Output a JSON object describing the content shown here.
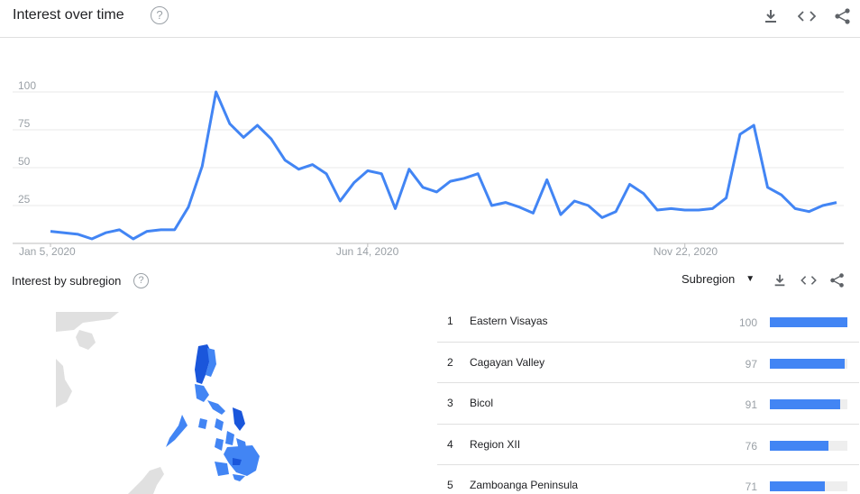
{
  "header": {
    "title": "Interest over time",
    "help_glyph": "?",
    "icons": [
      "download-icon",
      "embed-code-icon",
      "share-icon"
    ]
  },
  "chart_data": {
    "type": "line",
    "title": "",
    "xlabel": "",
    "ylabel": "",
    "ylim": [
      0,
      100
    ],
    "yticks": [
      25,
      50,
      75,
      100
    ],
    "grid": true,
    "x_tick_labels": [
      "Jan 5, 2020",
      "Jun 14, 2020",
      "Nov 22, 2020"
    ],
    "x_tick_indices": [
      0,
      23,
      46
    ],
    "series": [
      {
        "name": "",
        "color": "#4285f4",
        "values": [
          8,
          7,
          6,
          3,
          7,
          9,
          3,
          8,
          9,
          9,
          24,
          51,
          100,
          79,
          70,
          78,
          69,
          55,
          49,
          52,
          46,
          28,
          40,
          48,
          46,
          23,
          49,
          37,
          34,
          41,
          43,
          46,
          25,
          27,
          24,
          20,
          42,
          19,
          28,
          25,
          17,
          21,
          39,
          33,
          22,
          23,
          22,
          22,
          23,
          30,
          72,
          78,
          37,
          32,
          23,
          21,
          25,
          27
        ]
      }
    ]
  },
  "subregion": {
    "title": "Interest by subregion",
    "help_glyph": "?",
    "dropdown_label": "Subregion",
    "dropdown_caret": "▼",
    "icons": [
      "download-icon",
      "embed-code-icon",
      "share-icon"
    ],
    "items": [
      {
        "rank": "1",
        "name": "Eastern Visayas",
        "value": 100
      },
      {
        "rank": "2",
        "name": "Cagayan Valley",
        "value": 97
      },
      {
        "rank": "3",
        "name": "Bicol",
        "value": 91
      },
      {
        "rank": "4",
        "name": "Region XII",
        "value": 76
      },
      {
        "rank": "5",
        "name": "Zamboanga Peninsula",
        "value": 71
      }
    ]
  },
  "map": {
    "land_color": "#e0e0e0",
    "region_color": "#4285f4",
    "dark_region_color": "#1a56db"
  }
}
